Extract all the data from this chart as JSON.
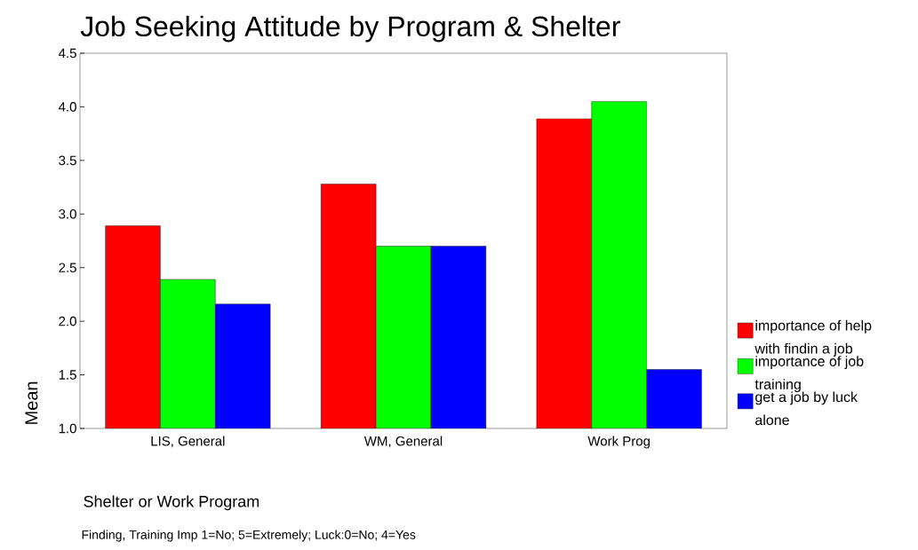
{
  "chart_data": {
    "type": "bar",
    "title": "Job Seeking Attitude by Program & Shelter",
    "xlabel": "Shelter or Work Program",
    "ylabel": "Mean",
    "categories": [
      "LIS, General",
      "WM, General",
      "Work Prog"
    ],
    "series": [
      {
        "name": "importance of help with findin a job",
        "color": "#ff0000",
        "values": [
          2.89,
          3.28,
          3.89
        ]
      },
      {
        "name": "importance of job training",
        "color": "#00ff00",
        "values": [
          2.39,
          2.7,
          4.05
        ]
      },
      {
        "name": "get a job by luck alone",
        "color": "#0000ff",
        "values": [
          2.16,
          2.7,
          1.55
        ]
      }
    ],
    "ylim": [
      1,
      4.5
    ],
    "yticks": [
      {
        "value": 1,
        "label": "1.0"
      },
      {
        "value": 1.5,
        "label": "1.5"
      },
      {
        "value": 2,
        "label": "2.0"
      },
      {
        "value": 2.5,
        "label": "2.5"
      },
      {
        "value": 3,
        "label": "3.0"
      },
      {
        "value": 3.5,
        "label": "3.5"
      },
      {
        "value": 4,
        "label": "4.0"
      },
      {
        "value": 4.5,
        "label": "4.5"
      }
    ],
    "legend": "right",
    "grid": false,
    "annotations": [
      "Finding, Training Imp 1=No; 5=Extremely; Luck:0=No; 4=Yes"
    ]
  }
}
